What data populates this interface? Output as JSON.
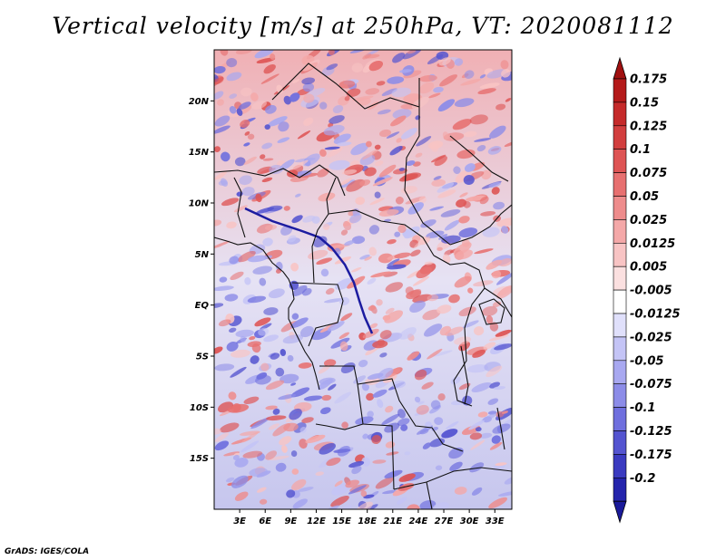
{
  "title": "Vertical velocity [m/s] at 250hPa, VT: 2020081112",
  "credit": "GrADS: IGES/COLA",
  "map": {
    "lon_range": [
      0,
      35
    ],
    "lat_range": [
      -20,
      25
    ],
    "x_ticks": [
      {
        "value": 3,
        "label": "3E"
      },
      {
        "value": 6,
        "label": "6E"
      },
      {
        "value": 9,
        "label": "9E"
      },
      {
        "value": 12,
        "label": "12E"
      },
      {
        "value": 15,
        "label": "15E"
      },
      {
        "value": 18,
        "label": "18E"
      },
      {
        "value": 21,
        "label": "21E"
      },
      {
        "value": 24,
        "label": "24E"
      },
      {
        "value": 27,
        "label": "27E"
      },
      {
        "value": 30,
        "label": "30E"
      },
      {
        "value": 33,
        "label": "33E"
      }
    ],
    "y_ticks": [
      {
        "value": 20,
        "label": "20N"
      },
      {
        "value": 15,
        "label": "15N"
      },
      {
        "value": 10,
        "label": "10N"
      },
      {
        "value": 5,
        "label": "5N"
      },
      {
        "value": 0,
        "label": "EQ"
      },
      {
        "value": -5,
        "label": "5S"
      },
      {
        "value": -10,
        "label": "10S"
      },
      {
        "value": -15,
        "label": "15S"
      }
    ]
  },
  "colorbar": [
    {
      "label": "0.175",
      "color": "#b41a1a"
    },
    {
      "label": "0.15",
      "color": "#c52a2a"
    },
    {
      "label": "0.125",
      "color": "#d23e3e"
    },
    {
      "label": "0.1",
      "color": "#de5454"
    },
    {
      "label": "0.075",
      "color": "#e77070"
    },
    {
      "label": "0.05",
      "color": "#ee8c8c"
    },
    {
      "label": "0.025",
      "color": "#f4a8a8"
    },
    {
      "label": "0.0125",
      "color": "#f8c4c4"
    },
    {
      "label": "0.005",
      "color": "#fbe0e0"
    },
    {
      "label": "-0.005",
      "color": "#ffffff"
    },
    {
      "label": "-0.0125",
      "color": "#e0e0fb"
    },
    {
      "label": "-0.025",
      "color": "#c4c4f6"
    },
    {
      "label": "-0.05",
      "color": "#a8a8f0"
    },
    {
      "label": "-0.075",
      "color": "#8c8ce8"
    },
    {
      "label": "-0.1",
      "color": "#6f6fde"
    },
    {
      "label": "-0.125",
      "color": "#5454d0"
    },
    {
      "label": "-0.175",
      "color": "#3a3ac0"
    },
    {
      "label": "-0.2",
      "color": "#2424ac"
    }
  ],
  "colorbar_extremes": {
    "top": "#a01010",
    "bottom": "#1a1a9a"
  }
}
